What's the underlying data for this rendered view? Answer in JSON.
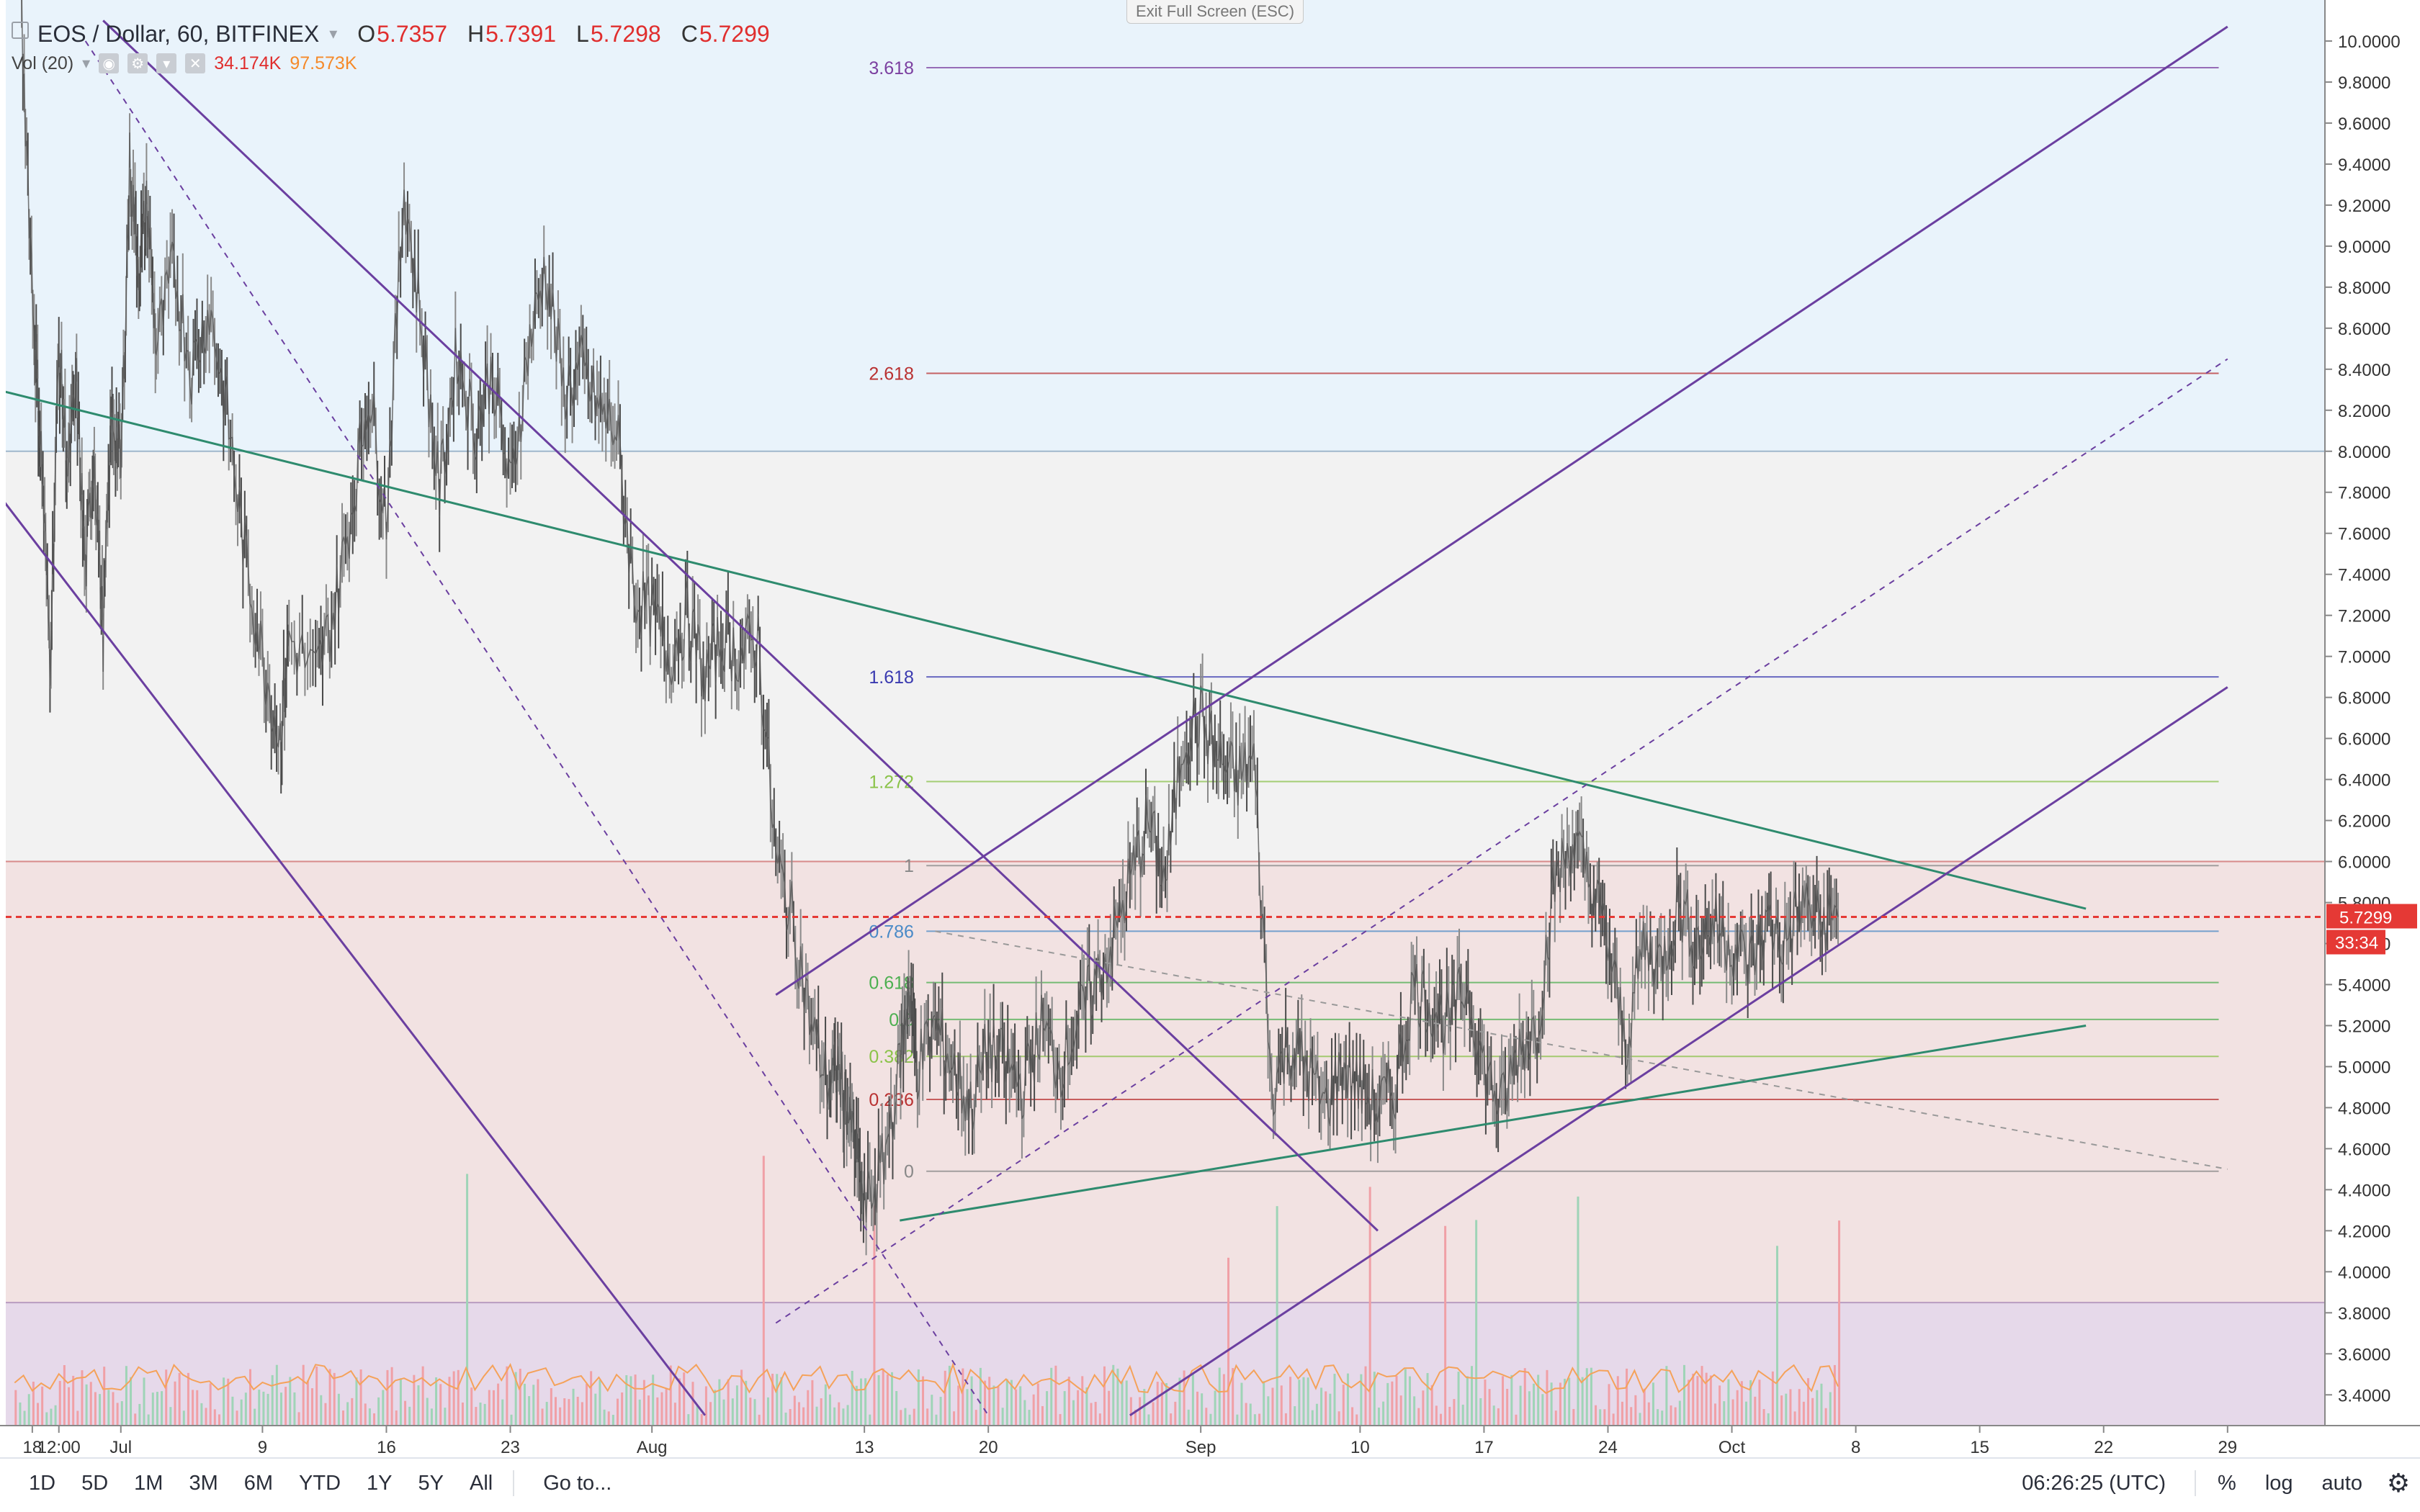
{
  "header": {
    "symbol": "EOS / Dollar, 60, BITFINEX",
    "ohlc": [
      {
        "k": "O",
        "v": "5.7357"
      },
      {
        "k": "H",
        "v": "5.7391"
      },
      {
        "k": "L",
        "v": "5.7298"
      },
      {
        "k": "C",
        "v": "5.7299"
      }
    ],
    "volume_label": "Vol (20)",
    "volume_value_1": "34.174K",
    "volume_value_2": "97.573K"
  },
  "exit_fullscreen": "Exit Full Screen (ESC)",
  "last_price": {
    "value": "5.7299",
    "countdown": "33:34"
  },
  "toolbar": {
    "ranges": [
      "1D",
      "5D",
      "1M",
      "3M",
      "6M",
      "YTD",
      "1Y",
      "5Y",
      "All"
    ],
    "goto": "Go to...",
    "clock": "06:26:25 (UTC)",
    "percent": "%",
    "log": "log",
    "auto": "auto"
  },
  "colors": {
    "up": "#53b987",
    "down": "#eb4d5c",
    "purple": "#6b3fa0",
    "teal": "#2e8b6e",
    "price_line": "#e53935"
  },
  "chart_data": {
    "type": "candlestick",
    "symbol": "EOS / Dollar",
    "interval": "60",
    "exchange": "BITFINEX",
    "ylim": [
      3.25,
      10.2
    ],
    "y_ticks": [
      "3.4000",
      "3.6000",
      "3.8000",
      "4.0000",
      "4.2000",
      "4.4000",
      "4.6000",
      "4.8000",
      "5.0000",
      "5.2000",
      "5.4000",
      "5.6000",
      "5.8000",
      "6.0000",
      "6.2000",
      "6.4000",
      "6.6000",
      "6.8000",
      "7.0000",
      "7.2000",
      "7.4000",
      "7.6000",
      "7.8000",
      "8.0000",
      "8.2000",
      "8.4000",
      "8.6000",
      "8.8000",
      "9.0000",
      "9.2000",
      "9.4000",
      "9.6000",
      "9.8000",
      "10.0000"
    ],
    "x_ticks": [
      {
        "label": "18",
        "d": -13
      },
      {
        "label": "12:00",
        "d": -11.5
      },
      {
        "label": "Jul",
        "d": -8
      },
      {
        "label": "9",
        "d": 0
      },
      {
        "label": "16",
        "d": 7
      },
      {
        "label": "23",
        "d": 14
      },
      {
        "label": "Aug",
        "d": 22
      },
      {
        "label": "13",
        "d": 34
      },
      {
        "label": "20",
        "d": 41
      },
      {
        "label": "Sep",
        "d": 53
      },
      {
        "label": "10",
        "d": 62
      },
      {
        "label": "17",
        "d": 69
      },
      {
        "label": "24",
        "d": 76
      },
      {
        "label": "Oct",
        "d": 83
      },
      {
        "label": "8",
        "d": 90
      },
      {
        "label": "15",
        "d": 97
      },
      {
        "label": "22",
        "d": 104
      },
      {
        "label": "29",
        "d": 111
      }
    ],
    "price_path": [
      [
        -13.6,
        10.1
      ],
      [
        -12.9,
        8.6
      ],
      [
        -12.5,
        8.0
      ],
      [
        -12.0,
        7.0
      ],
      [
        -11.5,
        8.5
      ],
      [
        -11.0,
        7.9
      ],
      [
        -10.5,
        8.3
      ],
      [
        -10.0,
        7.4
      ],
      [
        -9.5,
        8.0
      ],
      [
        -9.0,
        7.1
      ],
      [
        -8.5,
        8.2
      ],
      [
        -8.0,
        7.9
      ],
      [
        -7.5,
        9.4
      ],
      [
        -7.0,
        8.9
      ],
      [
        -6.5,
        9.2
      ],
      [
        -6.0,
        8.5
      ],
      [
        -5.0,
        8.9
      ],
      [
        -4.0,
        8.4
      ],
      [
        -3.0,
        8.7
      ],
      [
        -2.0,
        8.2
      ],
      [
        -1.0,
        7.5
      ],
      [
        0.0,
        7.0
      ],
      [
        1.0,
        6.6
      ],
      [
        1.5,
        7.1
      ],
      [
        3.0,
        6.9
      ],
      [
        4.0,
        7.2
      ],
      [
        5.0,
        7.7
      ],
      [
        6.0,
        8.3
      ],
      [
        7.0,
        7.7
      ],
      [
        8.0,
        9.3
      ],
      [
        9.0,
        8.6
      ],
      [
        10.0,
        7.8
      ],
      [
        11.0,
        8.5
      ],
      [
        12.0,
        8.1
      ],
      [
        13.0,
        8.4
      ],
      [
        14.0,
        7.8
      ],
      [
        15.0,
        8.5
      ],
      [
        16.0,
        8.9
      ],
      [
        17.0,
        8.3
      ],
      [
        18.0,
        8.4
      ],
      [
        19.0,
        8.2
      ],
      [
        20.0,
        8.1
      ],
      [
        21.0,
        7.3
      ],
      [
        22.0,
        7.2
      ],
      [
        23.0,
        7.0
      ],
      [
        24.0,
        7.2
      ],
      [
        25.0,
        6.9
      ],
      [
        26.0,
        7.1
      ],
      [
        27.0,
        7.0
      ],
      [
        28.0,
        7.1
      ],
      [
        29.0,
        6.0
      ],
      [
        30.0,
        5.7
      ],
      [
        31.0,
        5.2
      ],
      [
        32.0,
        4.9
      ],
      [
        32.5,
        5.0
      ],
      [
        33.0,
        4.8
      ],
      [
        33.5,
        4.6
      ],
      [
        34.0,
        4.3
      ],
      [
        35.0,
        4.5
      ],
      [
        36.0,
        5.0
      ],
      [
        36.5,
        5.4
      ],
      [
        37.0,
        5.0
      ],
      [
        38.0,
        5.2
      ],
      [
        39.0,
        5.0
      ],
      [
        40.0,
        4.8
      ],
      [
        41.0,
        5.1
      ],
      [
        42.0,
        5.0
      ],
      [
        43.0,
        4.9
      ],
      [
        44.0,
        5.2
      ],
      [
        45.0,
        5.0
      ],
      [
        46.0,
        5.2
      ],
      [
        47.0,
        5.4
      ],
      [
        48.0,
        5.6
      ],
      [
        49.0,
        5.9
      ],
      [
        50.0,
        6.2
      ],
      [
        51.0,
        5.9
      ],
      [
        52.0,
        6.6
      ],
      [
        53.0,
        6.7
      ],
      [
        54.0,
        6.5
      ],
      [
        55.0,
        6.4
      ],
      [
        56.0,
        6.5
      ],
      [
        57.0,
        4.9
      ],
      [
        58.0,
        5.1
      ],
      [
        59.0,
        5.0
      ],
      [
        60.0,
        4.8
      ],
      [
        61.0,
        5.0
      ],
      [
        62.0,
        4.9
      ],
      [
        63.0,
        4.8
      ],
      [
        64.0,
        4.9
      ],
      [
        65.0,
        5.4
      ],
      [
        66.0,
        5.3
      ],
      [
        67.0,
        5.2
      ],
      [
        68.0,
        5.4
      ],
      [
        69.0,
        5.0
      ],
      [
        70.0,
        4.8
      ],
      [
        71.0,
        5.1
      ],
      [
        72.0,
        5.2
      ],
      [
        73.0,
        5.9
      ],
      [
        74.0,
        6.1
      ],
      [
        75.0,
        5.9
      ],
      [
        76.0,
        5.6
      ],
      [
        77.0,
        5.1
      ],
      [
        78.0,
        5.6
      ],
      [
        79.0,
        5.5
      ],
      [
        80.0,
        5.8
      ],
      [
        81.0,
        5.6
      ],
      [
        82.0,
        5.7
      ],
      [
        83.0,
        5.6
      ],
      [
        84.0,
        5.5
      ],
      [
        85.0,
        5.7
      ],
      [
        86.0,
        5.6
      ],
      [
        87.0,
        5.8
      ],
      [
        88.0,
        5.7
      ],
      [
        89.0,
        5.73
      ]
    ],
    "fib_levels": [
      {
        "label": "3.618",
        "value": 9.87,
        "color": "#7b3fa0"
      },
      {
        "label": "2.618",
        "value": 8.38,
        "color": "#b93131"
      },
      {
        "label": "1.618",
        "value": 6.9,
        "color": "#3a3ab0"
      },
      {
        "label": "1.272",
        "value": 6.39,
        "color": "#8bc34a"
      },
      {
        "label": "1",
        "value": 5.98,
        "color": "#888888"
      },
      {
        "label": "0.786",
        "value": 5.66,
        "color": "#4a8ac7"
      },
      {
        "label": "0.618",
        "value": 5.41,
        "color": "#4caf50"
      },
      {
        "label": "0.5",
        "value": 5.23,
        "color": "#4caf50"
      },
      {
        "label": "0.382",
        "value": 5.05,
        "color": "#8bc34a"
      },
      {
        "label": "0.236",
        "value": 4.84,
        "color": "#b93131"
      },
      {
        "label": "0",
        "value": 4.49,
        "color": "#888888"
      }
    ],
    "trend_lines": [
      {
        "from": [
          -15.0,
          8.3
        ],
        "to": [
          103.0,
          5.77
        ],
        "color": "#2e8b6e",
        "dash": false
      },
      {
        "from": [
          36.0,
          4.25
        ],
        "to": [
          103.0,
          5.2
        ],
        "color": "#2e8b6e",
        "dash": false
      },
      {
        "from": [
          -15.0,
          7.8
        ],
        "to": [
          25.0,
          3.3
        ],
        "color": "#6b3fa0",
        "dash": false
      },
      {
        "from": [
          -9.0,
          10.1
        ],
        "to": [
          63.0,
          4.2
        ],
        "color": "#6b3fa0",
        "dash": false
      },
      {
        "from": [
          29.0,
          5.35
        ],
        "to": [
          111.0,
          10.07
        ],
        "color": "#6b3fa0",
        "dash": false
      },
      {
        "from": [
          49.0,
          3.3
        ],
        "to": [
          111.0,
          6.85
        ],
        "color": "#6b3fa0",
        "dash": false
      },
      {
        "from": [
          29.0,
          3.75
        ],
        "to": [
          111.0,
          8.45
        ],
        "color": "#6b3fa0",
        "dash": true
      },
      {
        "from": [
          -10.0,
          10.0
        ],
        "to": [
          41.0,
          3.3
        ],
        "color": "#6b3fa0",
        "dash": true
      },
      {
        "from": [
          38.0,
          5.66
        ],
        "to": [
          111.0,
          4.5
        ],
        "color": "#999999",
        "dash": true
      }
    ],
    "zones": [
      {
        "from": 8.0,
        "to": 10.2,
        "color": "#e9f3fb"
      },
      {
        "from": 6.0,
        "to": 8.0,
        "color": "#f2f2f2"
      },
      {
        "from": 3.85,
        "to": 6.0,
        "color": "#f2e2e2"
      },
      {
        "from": 3.25,
        "to": 3.85,
        "color": "#e6d9ea"
      }
    ]
  }
}
